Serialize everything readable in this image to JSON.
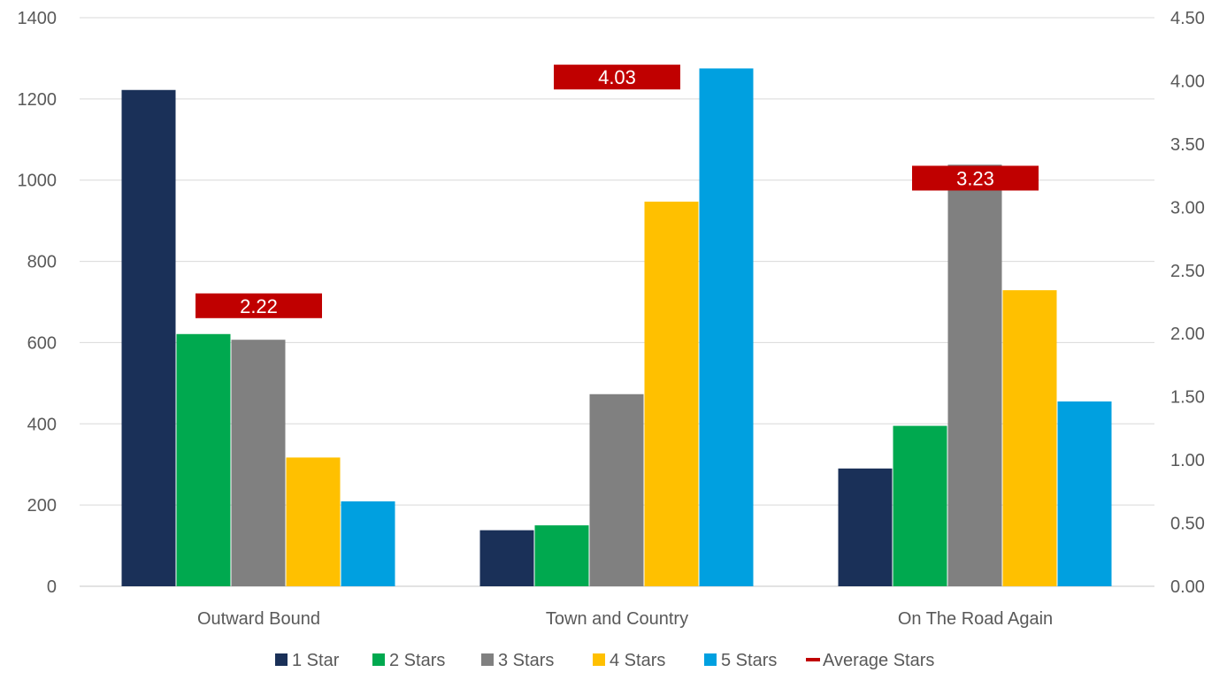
{
  "chart_data": {
    "type": "bar",
    "categories": [
      "Outward Bound",
      "Town and Country",
      "On The Road Again"
    ],
    "series": [
      {
        "name": "1 Star",
        "color": "#1a3058",
        "values": [
          1222,
          138,
          290
        ]
      },
      {
        "name": "2 Stars",
        "color": "#00a94f",
        "values": [
          621,
          150,
          395
        ]
      },
      {
        "name": "3 Stars",
        "color": "#808080",
        "values": [
          607,
          473,
          1038
        ]
      },
      {
        "name": "4 Stars",
        "color": "#ffc000",
        "values": [
          317,
          947,
          729
        ]
      },
      {
        "name": "5 Stars",
        "color": "#00a0e0",
        "values": [
          209,
          1275,
          455
        ]
      }
    ],
    "average": {
      "name": "Average Stars",
      "color": "#c00000",
      "values": [
        2.22,
        4.03,
        3.23
      ],
      "labels": [
        "2.22",
        "4.03",
        "3.23"
      ]
    },
    "y_left": {
      "min": 0,
      "max": 1400,
      "step": 200,
      "ticks": [
        "0",
        "200",
        "400",
        "600",
        "800",
        "1000",
        "1200",
        "1400"
      ]
    },
    "y_right": {
      "min": 0,
      "max": 4.5,
      "step": 0.5,
      "ticks": [
        "0.00",
        "0.50",
        "1.00",
        "1.50",
        "2.00",
        "2.50",
        "3.00",
        "3.50",
        "4.00",
        "4.50"
      ]
    },
    "grid": true,
    "legend_position": "bottom"
  }
}
